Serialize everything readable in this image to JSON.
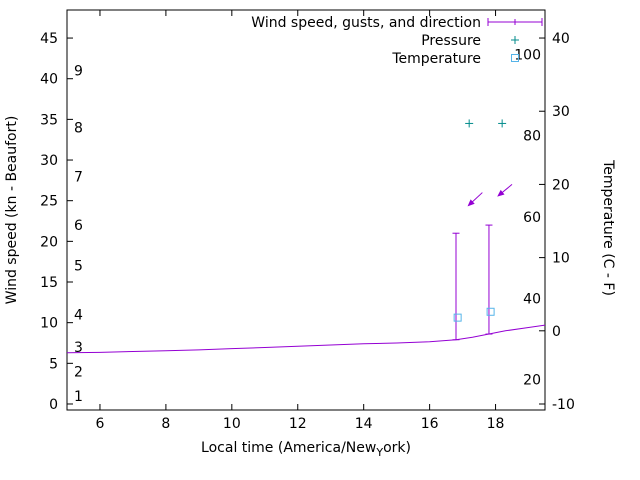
{
  "chart_data": {
    "type": "line",
    "title": "",
    "xlabel": {
      "full": "Local time (America/New_York)",
      "before_sub": "Local time (America/New",
      "subscript": "Y",
      "after_sub": "ork)"
    },
    "ylabel_left": "Wind speed (kn - Beaufort)",
    "ylabel_right": "Temperature (C - F)",
    "axes": {
      "x_range": [
        5,
        19.5
      ],
      "y_left_range_kn": [
        -0.74,
        48.45
      ],
      "y_right_range_c": [
        -10.82,
        43.83
      ],
      "x_ticks": [
        6,
        8,
        10,
        12,
        14,
        16,
        18
      ],
      "y_left_ticks_kn": [
        0,
        5,
        10,
        15,
        20,
        25,
        30,
        35,
        40,
        45
      ],
      "beaufort_labels": [
        {
          "label": "1",
          "kn": 1
        },
        {
          "label": "2",
          "kn": 4
        },
        {
          "label": "3",
          "kn": 7
        },
        {
          "label": "4",
          "kn": 11
        },
        {
          "label": "5",
          "kn": 17
        },
        {
          "label": "6",
          "kn": 22
        },
        {
          "label": "7",
          "kn": 28
        },
        {
          "label": "8",
          "kn": 34
        },
        {
          "label": "9",
          "kn": 41
        }
      ],
      "y_right_ticks_c": [
        -10,
        0,
        10,
        20,
        30,
        40
      ],
      "fahrenheit_labels": [
        20,
        40,
        60,
        80,
        100
      ],
      "grid": false
    },
    "legend": {
      "position": "top-center-inside",
      "entries": [
        {
          "label": "Wind speed, gusts, and direction",
          "marker": "errorbar",
          "color": "#9400d3"
        },
        {
          "label": "Pressure",
          "marker": "plus",
          "color": "#008b8b"
        },
        {
          "label": "Temperature",
          "marker": "open-square",
          "color": "#56b4e9"
        }
      ]
    },
    "series": {
      "wind_speed_kn": {
        "color": "#9400d3",
        "x": [
          5,
          6,
          7,
          8,
          9,
          10,
          11,
          12,
          13,
          14,
          15,
          16,
          16.8,
          17.3,
          17.8,
          18.3,
          19,
          19.5
        ],
        "y": [
          6.3,
          6.35,
          6.45,
          6.55,
          6.65,
          6.8,
          6.95,
          7.1,
          7.25,
          7.4,
          7.5,
          7.65,
          7.9,
          8.2,
          8.6,
          9.0,
          9.4,
          9.7
        ]
      },
      "gusts_kn": {
        "color": "#9400d3",
        "bars": [
          {
            "x": 16.8,
            "low": 7.9,
            "high": 21.0
          },
          {
            "x": 17.8,
            "low": 8.6,
            "high": 22.0
          }
        ]
      },
      "wind_direction": {
        "color": "#9400d3",
        "arrows": [
          {
            "x_tail": 17.6,
            "y_tail_kn": 26.0,
            "x_tip": 17.15,
            "y_tip_kn": 24.3
          },
          {
            "x_tail": 18.5,
            "y_tail_kn": 27.0,
            "x_tip": 18.05,
            "y_tip_kn": 25.5
          }
        ]
      },
      "pressure": {
        "color": "#008b8b",
        "points_on_left_axis_kn": [
          {
            "x": 17.2,
            "y": 34.5
          },
          {
            "x": 18.2,
            "y": 34.5
          }
        ]
      },
      "temperature_c": {
        "color": "#56b4e9",
        "points": [
          {
            "x": 16.85,
            "c": 1.8
          },
          {
            "x": 17.85,
            "c": 2.6
          }
        ]
      }
    }
  }
}
